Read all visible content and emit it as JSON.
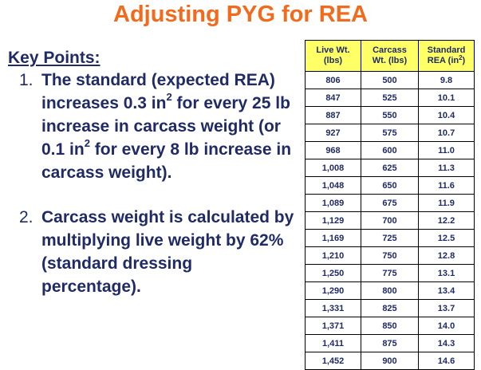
{
  "title": "Adjusting PYG for REA",
  "key_points": {
    "heading": "Key Points:",
    "points": [
      {
        "number": "1.",
        "text_a": "The standard (expected REA) increases 0.3 in",
        "sup_a": "2",
        "text_b": " for every 25 lb increase in carcass weight (or 0.1 in",
        "sup_b": "2",
        "text_c": " for every 8 lb increase in carcass weight)."
      },
      {
        "number": "2.",
        "text": "Carcass weight is calculated by multiplying live weight by 62% (standard dressing percentage)."
      }
    ]
  },
  "table": {
    "headers": [
      {
        "line1": "Live Wt.",
        "line2": "(lbs)",
        "sup": ""
      },
      {
        "line1": "Carcass",
        "line2": "Wt. (lbs)",
        "sup": ""
      },
      {
        "line1": "Standard",
        "line2": "REA (in",
        "sup": "2",
        "close": ")"
      }
    ],
    "rows": [
      [
        "806",
        "500",
        "9.8"
      ],
      [
        "847",
        "525",
        "10.1"
      ],
      [
        "887",
        "550",
        "10.4"
      ],
      [
        "927",
        "575",
        "10.7"
      ],
      [
        "968",
        "600",
        "11.0"
      ],
      [
        "1,008",
        "625",
        "11.3"
      ],
      [
        "1,048",
        "650",
        "11.6"
      ],
      [
        "1,089",
        "675",
        "11.9"
      ],
      [
        "1,129",
        "700",
        "12.2"
      ],
      [
        "1,169",
        "725",
        "12.5"
      ],
      [
        "1,210",
        "750",
        "12.8"
      ],
      [
        "1,250",
        "775",
        "13.1"
      ],
      [
        "1,290",
        "800",
        "13.4"
      ],
      [
        "1,331",
        "825",
        "13.7"
      ],
      [
        "1,371",
        "850",
        "14.0"
      ],
      [
        "1,411",
        "875",
        "14.3"
      ],
      [
        "1,452",
        "900",
        "14.6"
      ]
    ]
  },
  "colors": {
    "title": "#f26a1b",
    "text": "#1f2a66",
    "header_bg": "#ffff66"
  }
}
